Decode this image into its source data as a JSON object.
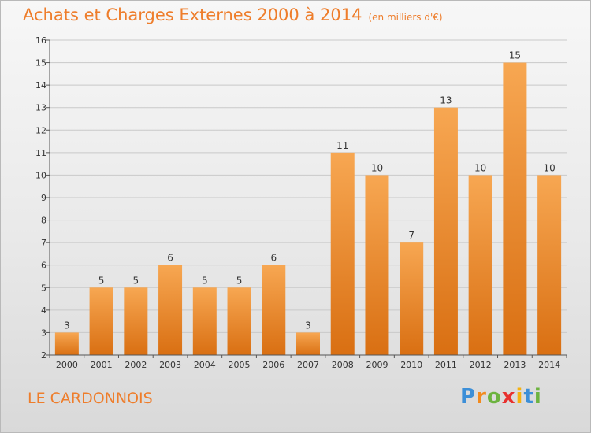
{
  "header": {
    "title": "Achats et Charges Externes 2000 à 2014",
    "subtitle": "(en milliers d'€)"
  },
  "footer": {
    "place": "LE CARDONNOIS",
    "brand_letters": [
      "P",
      "r",
      "o",
      "x",
      "i",
      "t",
      "i"
    ],
    "brand_colors": [
      "#3c8fd8",
      "#f28a1e",
      "#6cb33f",
      "#e8312f",
      "#f6b20f",
      "#3c8fd8",
      "#6cb33f"
    ]
  },
  "chart_data": {
    "type": "bar",
    "categories": [
      "2000",
      "2001",
      "2002",
      "2003",
      "2004",
      "2005",
      "2006",
      "2007",
      "2008",
      "2009",
      "2010",
      "2011",
      "2012",
      "2013",
      "2014"
    ],
    "values": [
      3,
      5,
      5,
      6,
      5,
      5,
      6,
      3,
      11,
      10,
      7,
      13,
      10,
      15,
      10
    ],
    "title": "Achats et Charges Externes 2000 à 2014",
    "ylim": [
      2,
      16
    ],
    "yticks": [
      2,
      3,
      4,
      5,
      6,
      7,
      8,
      9,
      10,
      11,
      12,
      13,
      14,
      15,
      16
    ],
    "grid": true,
    "bar_color_top": "#f7a752",
    "bar_color_bottom": "#d96f12"
  }
}
